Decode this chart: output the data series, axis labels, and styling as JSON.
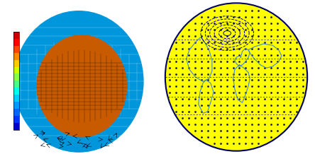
{
  "white_bg": "#ffffff",
  "left_bg": "#d8d8d8",
  "right_panel": {
    "globe_bg": "#ffff00",
    "globe_edge": "#000066",
    "dot_color": "#1a1a4a",
    "continent_color": "#4488cc",
    "contour_color": "#000080"
  },
  "colorbar_colors": [
    "#0000cc",
    "#0033ff",
    "#0066ff",
    "#0099ff",
    "#00ccff",
    "#00ffee",
    "#44ff88",
    "#88ff44",
    "#ccff00",
    "#ffcc00",
    "#ff8800",
    "#ff4400",
    "#ff0000",
    "#cc0000"
  ]
}
